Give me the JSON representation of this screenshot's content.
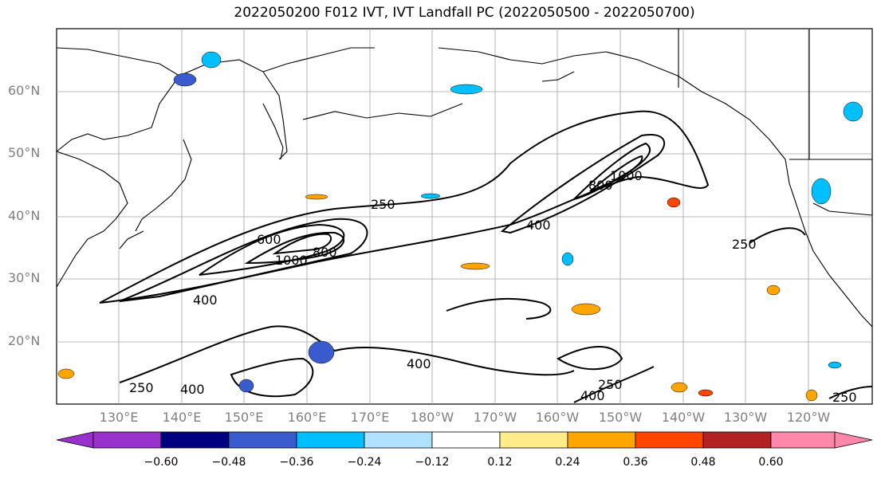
{
  "title": "2022050200 F012 IVT, IVT Landfall PC (2022050500 - 2022050700)",
  "lat_labels": [
    "60°N",
    "50°N",
    "40°N",
    "30°N",
    "20°N"
  ],
  "lon_labels": [
    "130°E",
    "140°E",
    "150°E",
    "160°E",
    "170°E",
    "180°W",
    "170°W",
    "160°W",
    "150°W",
    "140°W",
    "130°W",
    "120°W"
  ],
  "contour_labels": [
    "250",
    "600",
    "1000",
    "800",
    "400",
    "400",
    "800",
    "1000",
    "250",
    "400",
    "250",
    "400",
    "400",
    "250",
    "250"
  ],
  "colorbar": {
    "ticks": [
      "−0.60",
      "−0.48",
      "−0.36",
      "−0.24",
      "−0.12",
      "0.12",
      "0.24",
      "0.36",
      "0.48",
      "0.60"
    ],
    "colors": [
      "#9932cc",
      "#000080",
      "#3a5bcd",
      "#00bfff",
      "#b0e2ff",
      "#ffffff",
      "#ffeb8a",
      "#ffa500",
      "#ff4500",
      "#b22222",
      "#ff88aa"
    ]
  }
}
